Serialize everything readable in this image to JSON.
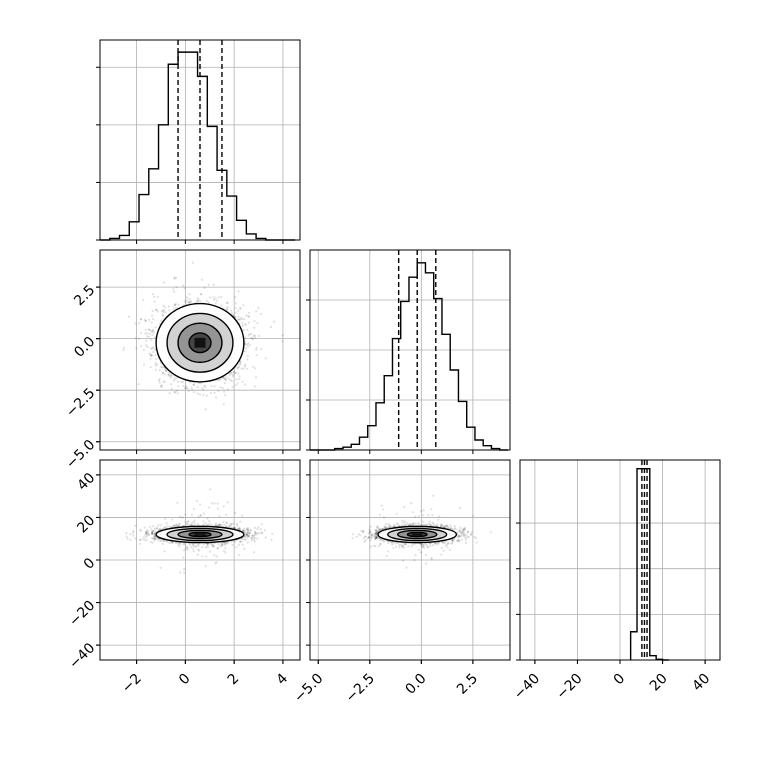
{
  "chart_data": {
    "type": "corner",
    "title": "",
    "grid": true,
    "parameters": [
      {
        "label": "",
        "range": [
          -3.5,
          4.7
        ],
        "xticks": [
          -2,
          0,
          2,
          4
        ],
        "xtick_labels": [
          "−2",
          "0",
          "2",
          "4"
        ],
        "yticks": [],
        "ytick_labels": [],
        "quantiles": [
          -0.3,
          0.6,
          1.5
        ],
        "hist_max": 0.132,
        "hist_bin_edges": [
          -3.5,
          -3.1,
          -2.7,
          -2.3,
          -1.9,
          -1.5,
          -1.1,
          -0.7,
          -0.3,
          0.1,
          0.5,
          0.9,
          1.3,
          1.7,
          2.1,
          2.5,
          2.9,
          3.3,
          3.7,
          4.1,
          4.5
        ],
        "hist_counts": [
          0.0,
          0.001,
          0.003,
          0.012,
          0.03,
          0.047,
          0.076,
          0.116,
          0.124,
          0.124,
          0.108,
          0.075,
          0.046,
          0.029,
          0.013,
          0.004,
          0.001,
          0.0,
          0.0,
          0.0
        ],
        "hist_yticks": [
          0.0,
          0.038,
          0.076,
          0.114
        ]
      },
      {
        "label": "",
        "range": [
          -5.4,
          4.3
        ],
        "xticks": [
          -5.0,
          -2.5,
          0.0,
          2.5
        ],
        "xtick_labels": [
          "−5.0",
          "−2.5",
          "0.0",
          "2.5"
        ],
        "yticks": [
          -5.0,
          -2.5,
          0.0,
          2.5
        ],
        "ytick_labels": [
          "−5.0",
          "−2.5",
          "0.0",
          "2.5"
        ],
        "quantiles": [
          -1.1,
          -0.2,
          0.7
        ],
        "hist_max": 0.14,
        "hist_bin_edges": [
          -5.4,
          -5.0,
          -4.6,
          -4.2,
          -3.8,
          -3.4,
          -3.0,
          -2.6,
          -2.2,
          -1.8,
          -1.4,
          -1.0,
          -0.6,
          -0.2,
          0.2,
          0.6,
          1.0,
          1.4,
          1.8,
          2.2,
          2.6,
          3.0,
          3.4,
          3.8,
          4.2
        ],
        "hist_counts": [
          0.0,
          0.0,
          0.0,
          0.001,
          0.002,
          0.004,
          0.009,
          0.017,
          0.033,
          0.052,
          0.078,
          0.104,
          0.121,
          0.131,
          0.124,
          0.106,
          0.081,
          0.056,
          0.034,
          0.016,
          0.007,
          0.003,
          0.001,
          0.0
        ],
        "hist_yticks": [
          0.0,
          0.035,
          0.07,
          0.105
        ]
      },
      {
        "label": "",
        "range": [
          -47,
          47
        ],
        "xticks": [
          -40,
          -20,
          0,
          20,
          40
        ],
        "xtick_labels": [
          "−40",
          "−20",
          "0",
          "20",
          "40"
        ],
        "yticks": [
          -40,
          -20,
          0,
          20,
          40
        ],
        "ytick_labels": [
          "−40",
          "−20",
          "0",
          "20",
          "40"
        ],
        "quantiles": [
          10.3,
          11.5,
          12.7
        ],
        "hist_max": 0.92,
        "hist_bin_edges": [
          5.0,
          8.0,
          11.0,
          14.0,
          17.0,
          20.0,
          23.0
        ],
        "hist_counts": [
          0.13,
          0.88,
          0.88,
          0.02,
          0.003,
          0.0
        ],
        "hist_yticks": [
          0.0,
          0.21,
          0.42,
          0.63
        ]
      }
    ],
    "pairs": [
      {
        "x": 0,
        "y": 1,
        "center": [
          0.6,
          -0.2
        ],
        "sigma": [
          0.9,
          0.95
        ],
        "rho": 0.0
      },
      {
        "x": 0,
        "y": 2,
        "center": [
          0.6,
          12.0
        ],
        "sigma": [
          0.9,
          1.9
        ],
        "rho": 0.0
      },
      {
        "x": 1,
        "y": 2,
        "center": [
          -0.2,
          12.0
        ],
        "sigma": [
          0.95,
          1.9
        ],
        "rho": 0.0
      }
    ]
  }
}
